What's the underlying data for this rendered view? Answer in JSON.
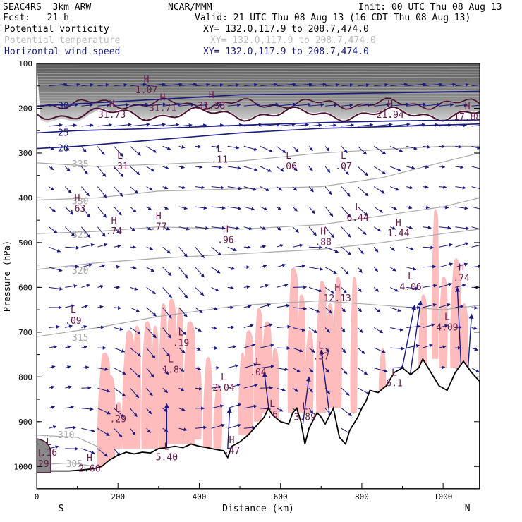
{
  "header": {
    "model": "SEAC4RS  3km ARW",
    "org": "NCAR/MMM",
    "init": "Init: 00 UTC Thu 08 Aug 13",
    "fcst": "Fcst:   21 h",
    "valid": "Valid: 21 UTC Thu 08 Aug 13 (16 CDT Thu 08 Aug 13)"
  },
  "legend": [
    {
      "name": "Potential vorticity",
      "xy": "XY= 132.0,117.9 to 208.7,474.0",
      "color": "#000000",
      "xycolor": "#000000"
    },
    {
      "name": "Potential temperature",
      "xy": "XY= 132.0,117.9 to 208.7,474.0",
      "color": "#bbbbbb",
      "xycolor": "#bbbbbb"
    },
    {
      "name": "Horizontal wind speed",
      "xy": "XY= 132.0,117.9 to 208.7,474.0",
      "color": "#1a1a7a",
      "xycolor": "#1a1a7a"
    }
  ],
  "colors": {
    "pv_shade": "#ffbcbc",
    "stratosphere": "#666666",
    "wind": "#1a1a80",
    "pv_label": "#6a1a4a",
    "theta": "#aaaaaa",
    "terrain": "#000000"
  },
  "chart_data": {
    "type": "cross-section",
    "xlabel": "Distance (km)",
    "ylabel": "Pressure (hPa)",
    "xlim": [
      0,
      1090
    ],
    "ylim": [
      1050,
      100
    ],
    "xticks": [
      0,
      200,
      400,
      600,
      800,
      1000
    ],
    "yticks": [
      100,
      200,
      300,
      400,
      500,
      600,
      700,
      800,
      900,
      1000
    ],
    "end_labels": {
      "left": "S",
      "right": "N"
    },
    "terrain": [
      [
        0,
        1010
      ],
      [
        40,
        1010
      ],
      [
        80,
        1010
      ],
      [
        110,
        1008
      ],
      [
        140,
        1005
      ],
      [
        160,
        1000
      ],
      [
        180,
        985
      ],
      [
        200,
        975
      ],
      [
        220,
        968
      ],
      [
        240,
        972
      ],
      [
        260,
        968
      ],
      [
        280,
        970
      ],
      [
        300,
        960
      ],
      [
        320,
        958
      ],
      [
        340,
        955
      ],
      [
        360,
        958
      ],
      [
        380,
        950
      ],
      [
        400,
        955
      ],
      [
        420,
        958
      ],
      [
        440,
        962
      ],
      [
        460,
        965
      ],
      [
        470,
        980
      ],
      [
        480,
        955
      ],
      [
        500,
        945
      ],
      [
        520,
        930
      ],
      [
        540,
        910
      ],
      [
        560,
        890
      ],
      [
        570,
        870
      ],
      [
        580,
        885
      ],
      [
        600,
        900
      ],
      [
        620,
        905
      ],
      [
        630,
        880
      ],
      [
        640,
        870
      ],
      [
        650,
        900
      ],
      [
        660,
        950
      ],
      [
        670,
        915
      ],
      [
        690,
        880
      ],
      [
        700,
        890
      ],
      [
        710,
        905
      ],
      [
        730,
        870
      ],
      [
        745,
        935
      ],
      [
        760,
        950
      ],
      [
        770,
        920
      ],
      [
        790,
        890
      ],
      [
        800,
        870
      ],
      [
        810,
        855
      ],
      [
        820,
        830
      ],
      [
        840,
        835
      ],
      [
        860,
        820
      ],
      [
        880,
        790
      ],
      [
        900,
        780
      ],
      [
        920,
        795
      ],
      [
        940,
        780
      ],
      [
        950,
        760
      ],
      [
        970,
        790
      ],
      [
        990,
        820
      ],
      [
        1010,
        830
      ],
      [
        1030,
        790
      ],
      [
        1050,
        765
      ],
      [
        1070,
        790
      ],
      [
        1090,
        810
      ]
    ],
    "theta_contours": [
      {
        "label": "335",
        "x": [
          0,
          150,
          300,
          500,
          700,
          850,
          1000,
          1090
        ],
        "y": [
          322,
          330,
          325,
          318,
          300,
          292,
          285,
          285
        ]
      },
      {
        "label": "330",
        "x": [
          0,
          150,
          300,
          500,
          700,
          850,
          1000,
          1090
        ],
        "y": [
          405,
          400,
          385,
          380,
          375,
          355,
          320,
          300
        ]
      },
      {
        "label": "325",
        "x": [
          0,
          150,
          300,
          500,
          700,
          850,
          1000,
          1090
        ],
        "y": [
          480,
          475,
          465,
          470,
          460,
          440,
          420,
          400
        ]
      },
      {
        "label": "320",
        "x": [
          0,
          150,
          300,
          500,
          700,
          850,
          1000,
          1090
        ],
        "y": [
          560,
          545,
          535,
          525,
          515,
          500,
          480,
          470
        ]
      },
      {
        "label": "315",
        "x": [
          0,
          150,
          300,
          500,
          700,
          850,
          1000,
          1090
        ],
        "y": [
          710,
          690,
          665,
          640,
          630,
          640,
          650,
          640
        ]
      },
      {
        "label": "310",
        "x": [
          0,
          100,
          160
        ],
        "y": [
          930,
          935,
          960
        ]
      },
      {
        "label": "305",
        "x": [
          20,
          90,
          140
        ],
        "y": [
          995,
          992,
          1000
        ]
      },
      {
        "label": "20",
        "x": [
          0,
          100,
          300,
          500,
          700,
          900,
          1090
        ],
        "y": [
          290,
          285,
          270,
          255,
          245,
          240,
          235
        ]
      },
      {
        "label": "25",
        "x": [
          0,
          100,
          300,
          500,
          700,
          900,
          1090
        ],
        "y": [
          255,
          250,
          245,
          238,
          232,
          228,
          226
        ]
      },
      {
        "label": "30",
        "x": [
          0,
          100,
          300,
          500,
          700,
          900,
          1090
        ],
        "y": [
          195,
          190,
          180,
          170,
          168,
          165,
          162
        ]
      }
    ],
    "pv_labels": [
      {
        "t": "H",
        "v": "1.07",
        "x": 270,
        "p": 155
      },
      {
        "t": "H",
        "v": "31.71",
        "x": 310,
        "p": 195
      },
      {
        "t": "H",
        "v": "31.38",
        "x": 430,
        "p": 190
      },
      {
        "t": "H",
        "v": "31.73",
        "x": 185,
        "p": 210
      },
      {
        "t": "H",
        "v": "21.94",
        "x": 870,
        "p": 210
      },
      {
        "t": "H",
        "v": "17.88",
        "x": 1060,
        "p": 215
      },
      {
        "t": "L",
        "v": ".31",
        "x": 205,
        "p": 325
      },
      {
        "t": "L",
        "v": ".11",
        "x": 450,
        "p": 310
      },
      {
        "t": "L",
        "v": ".06",
        "x": 620,
        "p": 325
      },
      {
        "t": "L",
        "v": ".07",
        "x": 755,
        "p": 325
      },
      {
        "t": "H",
        "v": ".63",
        "x": 100,
        "p": 420
      },
      {
        "t": "H",
        "v": ".74",
        "x": 190,
        "p": 470
      },
      {
        "t": "H",
        "v": ".77",
        "x": 300,
        "p": 460
      },
      {
        "t": "H",
        "v": ".96",
        "x": 465,
        "p": 490
      },
      {
        "t": "H",
        "v": ".88",
        "x": 705,
        "p": 495
      },
      {
        "t": "L",
        "v": "6.44",
        "x": 790,
        "p": 440
      },
      {
        "t": "H",
        "v": "1.44",
        "x": 890,
        "p": 475
      },
      {
        "t": "L",
        "v": ".09",
        "x": 90,
        "p": 670
      },
      {
        "t": "L",
        "v": ".19",
        "x": 355,
        "p": 720
      },
      {
        "t": "L",
        "v": "1.8",
        "x": 330,
        "p": 780
      },
      {
        "t": "L",
        "v": "2.04",
        "x": 460,
        "p": 820
      },
      {
        "t": "L",
        "v": ".04",
        "x": 545,
        "p": 785
      },
      {
        "t": "L",
        "v": ".37",
        "x": 700,
        "p": 750
      },
      {
        "t": "H",
        "v": "12.13",
        "x": 740,
        "p": 620
      },
      {
        "t": "L",
        "v": "4.06",
        "x": 920,
        "p": 595
      },
      {
        "t": "H",
        "v": ".74",
        "x": 1045,
        "p": 575
      },
      {
        "t": "L",
        "v": "4.09",
        "x": 1010,
        "p": 685
      },
      {
        "t": "L",
        "v": ".29",
        "x": 200,
        "p": 890
      },
      {
        "t": "L",
        "v": ".16",
        "x": 30,
        "p": 965
      },
      {
        "t": "L",
        "v": "5.40",
        "x": 320,
        "p": 975
      },
      {
        "t": "H",
        "v": ".47",
        "x": 480,
        "p": 960
      },
      {
        "t": "L",
        "v": ".6",
        "x": 580,
        "p": 880
      },
      {
        "t": "L",
        "v": "3.89",
        "x": 660,
        "p": 885
      },
      {
        "t": "H",
        "v": "2.66",
        "x": 130,
        "p": 1000
      },
      {
        "t": "L",
        "v": "6.1",
        "x": 880,
        "p": 810
      },
      {
        "t": "L",
        "v": ".29",
        "x": 10,
        "p": 990
      }
    ],
    "wind_barbs_note": "Horizontal wind vectors on a regular grid"
  }
}
